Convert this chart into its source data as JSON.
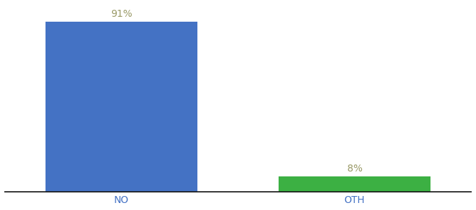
{
  "categories": [
    "NO",
    "OTH"
  ],
  "values": [
    91,
    8
  ],
  "bar_colors": [
    "#4472C4",
    "#3CB043"
  ],
  "value_labels": [
    "91%",
    "8%"
  ],
  "ylim": [
    0,
    100
  ],
  "background_color": "#ffffff",
  "label_fontsize": 10,
  "tick_fontsize": 10,
  "label_color": "#999966",
  "tick_color": "#4472C4",
  "bar_width": 0.65,
  "xlim": [
    -0.5,
    1.5
  ]
}
